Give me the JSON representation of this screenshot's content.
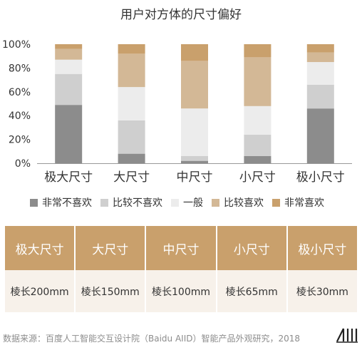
{
  "chart_data": {
    "type": "bar",
    "stacked": true,
    "title": "用户对方体的尺寸偏好",
    "categories": [
      "极大尺寸",
      "大尺寸",
      "中尺寸",
      "小尺寸",
      "极小尺寸"
    ],
    "yticks": [
      "0%",
      "20%",
      "40%",
      "60%",
      "80%",
      "100%"
    ],
    "ylim": [
      0,
      100
    ],
    "series": [
      {
        "name": "非常不喜欢",
        "color": "#8c8c8c",
        "values": [
          49,
          8,
          2,
          6,
          46
        ]
      },
      {
        "name": "比较不喜欢",
        "color": "#cfcfcf",
        "values": [
          26,
          28,
          4,
          18,
          20
        ]
      },
      {
        "name": "一般",
        "color": "#ececec",
        "values": [
          12,
          28,
          40,
          24,
          19
        ]
      },
      {
        "name": "比较喜欢",
        "color": "#d3b896",
        "values": [
          9,
          28,
          40,
          41,
          8
        ]
      },
      {
        "name": "非常喜欢",
        "color": "#c9a06c",
        "values": [
          4,
          8,
          14,
          11,
          7
        ]
      }
    ],
    "legend_position": "bottom",
    "grid": false
  },
  "table": {
    "headers": [
      "极大尺寸",
      "大尺寸",
      "中尺寸",
      "小尺寸",
      "极小尺寸"
    ],
    "values": [
      "棱长200mm",
      "棱长150mm",
      "棱长100mm",
      "棱长65mm",
      "棱长30mm"
    ]
  },
  "footer": {
    "source": "数据来源：百度人工智能交互设计院（Baidu AIID）智能产品外观研究，2018"
  },
  "colors": {
    "header_bg": "#c9a06c",
    "body_bg": "#f7f1ea"
  },
  "logo": {
    "icon": "aiid-logo-icon"
  }
}
